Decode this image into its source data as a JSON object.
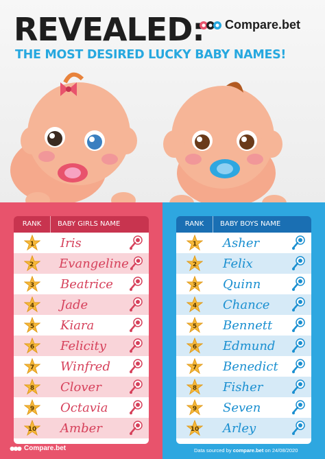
{
  "header": {
    "headline": "REVEALED:",
    "subhead": "THE MOST DESIRED LUCKY BABY NAMES!",
    "brand": "Compare.bet"
  },
  "girls": {
    "rank_header": "RANK",
    "name_header": "BABY GIRLS NAME",
    "names": [
      "Iris",
      "Evangeline",
      "Beatrice",
      "Jade",
      "Kiara",
      "Felicity",
      "Winfred",
      "Clover",
      "Octavia",
      "Amber"
    ]
  },
  "boys": {
    "rank_header": "RANK",
    "name_header": "BABY BOYS NAME",
    "names": [
      "Asher",
      "Felix",
      "Quinn",
      "Chance",
      "Bennett",
      "Edmund",
      "Benedict",
      "Fisher",
      "Seven",
      "Arley"
    ]
  },
  "ranks": [
    "1",
    "2",
    "3",
    "4",
    "5",
    "6",
    "7",
    "8",
    "9",
    "10"
  ],
  "footer": {
    "brand": "Compare.bet",
    "source_prefix": "Data sourced by",
    "source_site": "compare.bet",
    "source_suffix": "on 24/08/2020"
  },
  "colors": {
    "girls_panel": "#e8536c",
    "boys_panel": "#2ea7e0",
    "accent_blue": "#27a8df"
  }
}
